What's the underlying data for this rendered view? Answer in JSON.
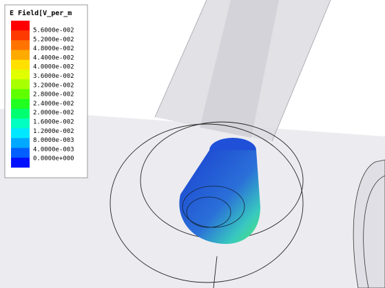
{
  "legend": {
    "title": "E Field[V_per_m",
    "labels": [
      "5.6000e-002",
      "5.2000e-002",
      "4.8000e-002",
      "4.4000e-002",
      "4.0000e-002",
      "3.6000e-002",
      "3.2000e-002",
      "2.8000e-002",
      "2.4000e-002",
      "2.0000e-002",
      "1.6000e-002",
      "1.2000e-002",
      "8.0000e-003",
      "4.0000e-003",
      "0.0000e+000"
    ],
    "colors": [
      "#ff0000",
      "#ff3a00",
      "#ff7400",
      "#ffaa00",
      "#ffe000",
      "#e0ff00",
      "#a8ff00",
      "#60ff00",
      "#20ff20",
      "#00ff70",
      "#00ffc0",
      "#00e8ff",
      "#00a8ff",
      "#0060ff",
      "#0010ff"
    ]
  }
}
